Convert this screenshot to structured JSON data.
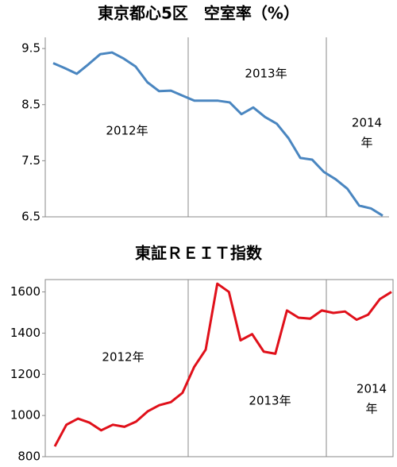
{
  "chart_data": [
    {
      "type": "line",
      "title": "東京都心5区　空室率（%）",
      "categories": [
        null,
        null,
        null,
        null,
        null,
        null,
        null,
        null,
        null,
        null,
        null,
        null,
        null,
        null,
        null,
        null,
        null,
        null,
        null,
        null,
        null,
        null,
        null,
        null,
        null,
        null,
        null,
        null,
        null
      ],
      "series": [
        {
          "name": null,
          "color": "#4a86c0",
          "values": [
            9.24,
            9.15,
            9.05,
            9.22,
            9.4,
            9.43,
            9.32,
            9.18,
            8.9,
            8.74,
            8.75,
            8.66,
            8.57,
            8.57,
            8.57,
            8.54,
            8.33,
            8.45,
            8.28,
            8.16,
            7.9,
            7.55,
            7.52,
            7.3,
            7.17,
            7.0,
            6.7,
            6.65,
            6.52
          ]
        }
      ],
      "ylim": [
        6.5,
        9.7
      ],
      "yticks": [
        9.5,
        8.5,
        7.5,
        6.5
      ],
      "grid": false,
      "annotations": [
        {
          "lines": [
            "2012年"
          ]
        },
        {
          "lines": [
            "2013年"
          ]
        },
        {
          "lines": [
            "2014",
            "年"
          ]
        }
      ]
    },
    {
      "type": "line",
      "title": "東証ＲＥＩＴ指数",
      "categories": [
        null,
        null,
        null,
        null,
        null,
        null,
        null,
        null,
        null,
        null,
        null,
        null,
        null,
        null,
        null,
        null,
        null,
        null,
        null,
        null,
        null,
        null,
        null,
        null,
        null,
        null,
        null,
        null,
        null,
        null
      ],
      "series": [
        {
          "name": null,
          "color": "#e0101a",
          "values": [
            850,
            955,
            985,
            965,
            928,
            955,
            945,
            970,
            1020,
            1050,
            1065,
            1110,
            1235,
            1320,
            1640,
            1600,
            1365,
            1395,
            1310,
            1300,
            1510,
            1475,
            1470,
            1510,
            1498,
            1505,
            1465,
            1490,
            1565,
            1600
          ]
        }
      ],
      "ylim": [
        800,
        1660
      ],
      "yticks": [
        800,
        1000,
        1200,
        1400,
        1600
      ],
      "grid": false,
      "annotations": [
        {
          "lines": [
            "2012年"
          ]
        },
        {
          "lines": [
            "2013年"
          ]
        },
        {
          "lines": [
            "2014",
            "年"
          ]
        }
      ]
    }
  ]
}
